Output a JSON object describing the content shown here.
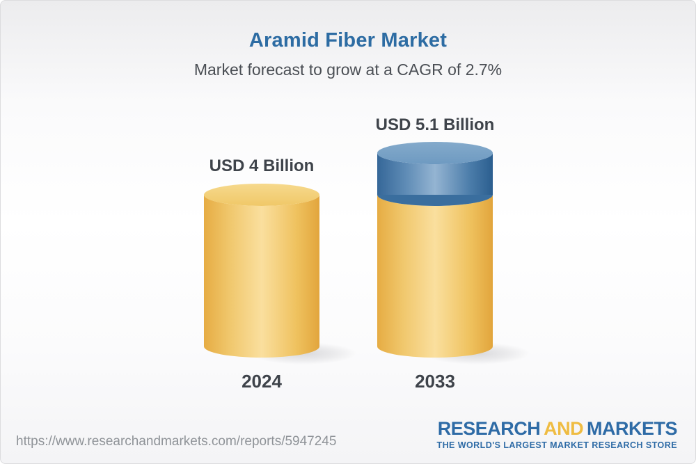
{
  "header": {
    "title": "Aramid Fiber Market",
    "subtitle": "Market forecast to grow at a CAGR of 2.7%"
  },
  "chart_data": {
    "type": "bar",
    "style": "3d-cylinder",
    "title": "Aramid Fiber Market",
    "subtitle": "Market forecast to grow at a CAGR of 2.7%",
    "categories": [
      "2024",
      "2033"
    ],
    "values": [
      4,
      5.1
    ],
    "value_labels": [
      "USD 4 Billion",
      "USD 5.1 Billion"
    ],
    "unit": "USD Billion",
    "cagr": "2.7%",
    "ylim": [
      0,
      5.1
    ],
    "grid": false,
    "legend": "none",
    "colors": {
      "base_segment": "#F2CA70",
      "growth_segment": "#5585B2",
      "title_accent": "#2D6CA3",
      "label_text": "#3E434A"
    }
  },
  "footer": {
    "url": "https://www.researchandmarkets.com/reports/5947245",
    "logo": {
      "word1": "RESEARCH",
      "word2": "AND",
      "word3": "MARKETS",
      "tagline": "THE WORLD'S LARGEST MARKET RESEARCH STORE"
    }
  }
}
